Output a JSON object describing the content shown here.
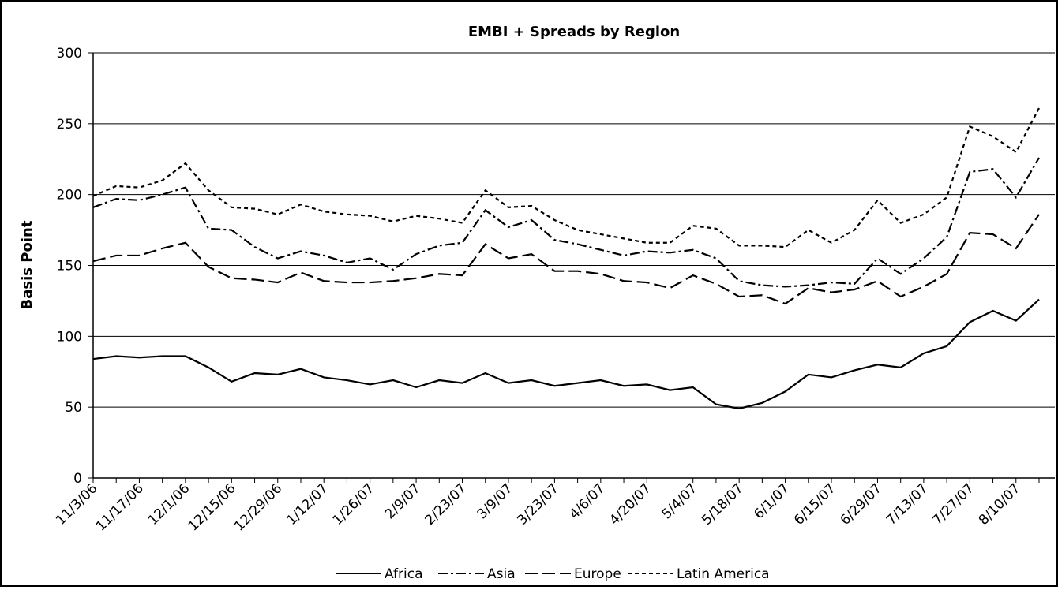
{
  "chart_data": {
    "type": "line",
    "title": "EMBI + Spreads by Region",
    "y_label": "Basis Point",
    "categories": [
      "11/3/06",
      null,
      "11/17/06",
      null,
      "12/1/06",
      null,
      "12/15/06",
      null,
      "12/29/06",
      null,
      "1/12/07",
      null,
      "1/26/07",
      null,
      "2/9/07",
      null,
      "2/23/07",
      null,
      "3/9/07",
      null,
      "3/23/07",
      null,
      "4/6/07",
      null,
      "4/20/07",
      null,
      "5/4/07",
      null,
      "5/18/07",
      null,
      "6/1/07",
      null,
      "6/15/07",
      null,
      "6/29/07",
      null,
      "7/13/07",
      null,
      "7/27/07",
      null,
      "8/10/07",
      null
    ],
    "series": [
      {
        "name": "Africa",
        "color": "#000000",
        "dash": "solid",
        "values": [
          84,
          86,
          85,
          86,
          86,
          78,
          68,
          74,
          73,
          77,
          71,
          69,
          66,
          69,
          64,
          69,
          67,
          74,
          67,
          69,
          65,
          67,
          69,
          65,
          66,
          62,
          64,
          52,
          49,
          53,
          61,
          73,
          71,
          76,
          80,
          78,
          88,
          93,
          110,
          118,
          111,
          126
        ]
      },
      {
        "name": "Asia",
        "color": "#000000",
        "dash": "dash-dot",
        "values": [
          191,
          197,
          196,
          200,
          205,
          176,
          175,
          163,
          155,
          160,
          157,
          152,
          155,
          147,
          158,
          164,
          166,
          189,
          177,
          182,
          168,
          165,
          161,
          157,
          160,
          159,
          161,
          155,
          139,
          136,
          135,
          136,
          138,
          137,
          155,
          144,
          155,
          170,
          216,
          218,
          198,
          226
        ]
      },
      {
        "name": "Europe",
        "color": "#000000",
        "dash": "long-dash",
        "values": [
          153,
          157,
          157,
          162,
          166,
          149,
          141,
          140,
          138,
          145,
          139,
          138,
          138,
          139,
          141,
          144,
          143,
          165,
          155,
          158,
          146,
          146,
          144,
          139,
          138,
          134,
          143,
          137,
          128,
          129,
          123,
          134,
          131,
          133,
          139,
          128,
          135,
          144,
          173,
          172,
          162,
          186
        ]
      },
      {
        "name": "Latin America",
        "color": "#000000",
        "dash": "short-dash",
        "values": [
          199,
          206,
          205,
          210,
          222,
          203,
          191,
          190,
          186,
          193,
          188,
          186,
          185,
          181,
          185,
          183,
          180,
          203,
          191,
          192,
          182,
          175,
          172,
          169,
          166,
          166,
          178,
          176,
          164,
          164,
          163,
          175,
          166,
          175,
          196,
          180,
          186,
          198,
          248,
          241,
          230,
          261
        ]
      }
    ],
    "ylim": [
      0,
      300
    ],
    "yticks": [
      0,
      50,
      100,
      150,
      200,
      250,
      300
    ],
    "grid": true,
    "legend": "bottom"
  }
}
